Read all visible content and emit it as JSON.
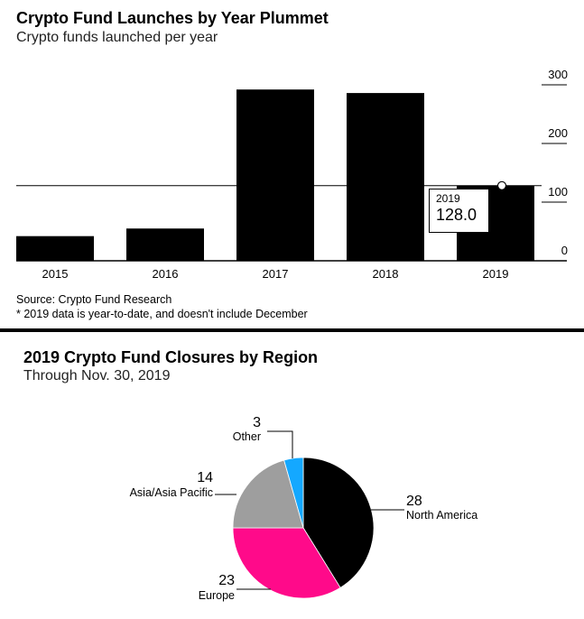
{
  "chart_data": [
    {
      "type": "bar",
      "title": "Crypto Fund Launches by Year Plummet",
      "subtitle": "Crypto funds launched per year",
      "categories": [
        "2015",
        "2016",
        "2017",
        "2018",
        "2019"
      ],
      "values": [
        42,
        55,
        292,
        286,
        128
      ],
      "ylim": [
        0,
        300
      ],
      "yticks": [
        "300",
        "200",
        "100",
        "0"
      ],
      "ytick_values": [
        300,
        200,
        100,
        0
      ],
      "reference_line_value": 128,
      "tooltip": {
        "label": "2019",
        "value": "128.0"
      },
      "bar_color": "#000000",
      "source": "Source: Crypto Fund Research",
      "footnote": "* 2019 data is year-to-date, and doesn't include December"
    },
    {
      "type": "pie",
      "title": "2019 Crypto Fund Closures by Region",
      "subtitle": "Through Nov. 30, 2019",
      "slices": [
        {
          "name": "North America",
          "value": 28,
          "label_value": "28",
          "color": "#000000"
        },
        {
          "name": "Europe",
          "value": 23,
          "label_value": "23",
          "color": "#ff0a8a"
        },
        {
          "name": "Asia/Asia Pacific",
          "value": 14,
          "label_value": "14",
          "color": "#9e9e9e"
        },
        {
          "name": "Other",
          "value": 3,
          "label_value": "3",
          "color": "#14a8ff"
        }
      ]
    }
  ]
}
